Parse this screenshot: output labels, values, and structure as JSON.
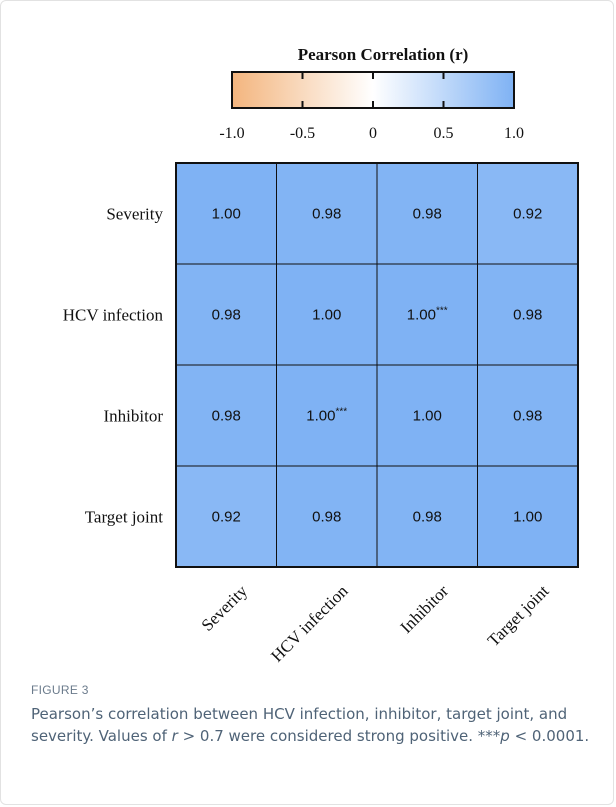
{
  "chart_data": {
    "type": "heatmap",
    "title": "Pearson Correlation (r)",
    "rows": [
      "Severity",
      "HCV infection",
      "Inhibitor",
      "Target joint"
    ],
    "columns": [
      "Severity",
      "HCV infection",
      "Inhibitor",
      "Target joint"
    ],
    "values": [
      [
        1.0,
        0.98,
        0.98,
        0.92
      ],
      [
        0.98,
        1.0,
        1.0,
        0.98
      ],
      [
        0.98,
        1.0,
        1.0,
        0.98
      ],
      [
        0.92,
        0.98,
        0.98,
        1.0
      ]
    ],
    "cell_labels": [
      [
        "1.00",
        "0.98",
        "0.98",
        "0.92"
      ],
      [
        "0.98",
        "1.00",
        "1.00",
        "0.98"
      ],
      [
        "0.98",
        "1.00",
        "1.00",
        "0.98"
      ],
      [
        "0.92",
        "0.98",
        "0.98",
        "1.00"
      ]
    ],
    "significance": [
      [
        "",
        "",
        "",
        ""
      ],
      [
        "",
        "",
        "***",
        ""
      ],
      [
        "",
        "***",
        "",
        ""
      ],
      [
        "",
        "",
        "",
        ""
      ]
    ],
    "colorbar": {
      "range": [
        -1.0,
        1.0
      ],
      "ticks": [
        -1.0,
        -0.5,
        0,
        0.5,
        1.0
      ],
      "tick_labels": [
        "-1.0",
        "-0.5",
        "0",
        "0.5",
        "1.0"
      ],
      "low_color": "#f3b57e",
      "mid_color": "#ffffff",
      "high_color": "#7fb2f4",
      "placement": "top"
    }
  },
  "caption": {
    "label": "FIGURE 3",
    "text_parts": [
      {
        "t": "Pearson’s correlation between HCV infection, inhibitor, target joint, and severity. Values of ",
        "i": false
      },
      {
        "t": "r",
        "i": true
      },
      {
        "t": " > 0.7 were considered strong positive. ***",
        "i": false
      },
      {
        "t": "p",
        "i": true
      },
      {
        "t": " < 0.0001.",
        "i": false
      }
    ]
  }
}
